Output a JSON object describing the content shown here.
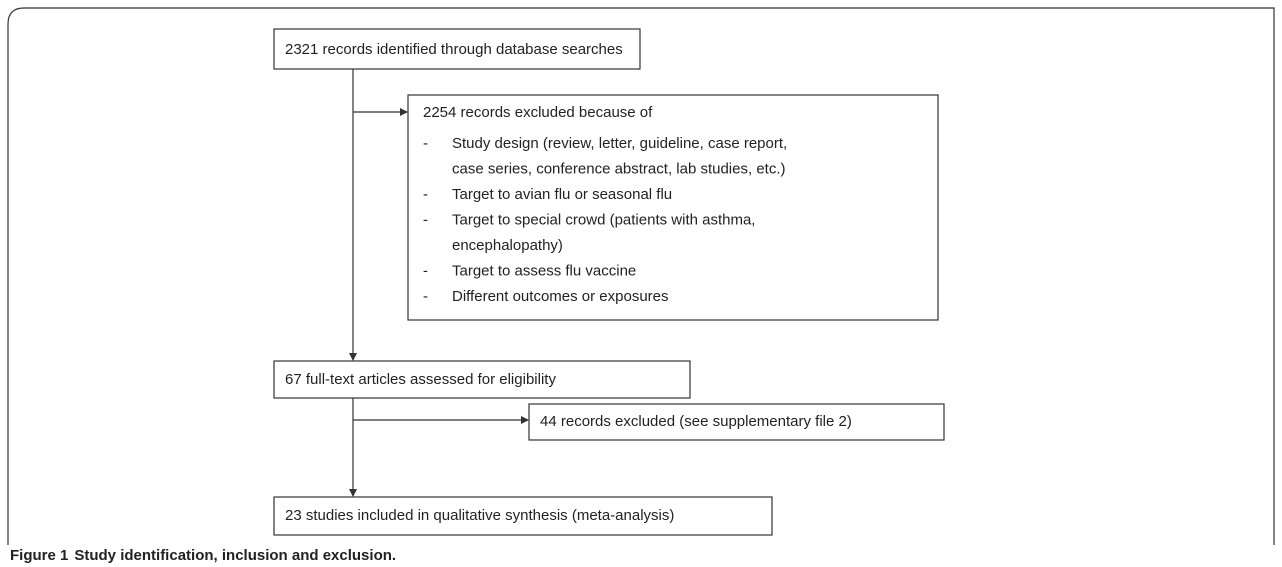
{
  "nodes": [
    {
      "text": "2321 records identified through database searches"
    },
    {
      "text": "67 full-text articles assessed for eligibility"
    },
    {
      "text": "23 studies included in qualitative synthesis (meta-analysis)"
    }
  ],
  "exclusions": [
    {
      "title": "2254 records excluded because of",
      "items": [
        [
          "Study design (review, letter, guideline, case report,",
          "case series, conference abstract, lab studies, etc.)"
        ],
        [
          "Target to avian flu or seasonal flu"
        ],
        [
          "Target to special crowd (patients with asthma,",
          "encephalopathy)"
        ],
        [
          "Target to assess flu vaccine"
        ],
        [
          "Different outcomes or exposures"
        ]
      ]
    },
    {
      "title": "44 records excluded (see supplementary file 2)"
    }
  ],
  "caption": {
    "label": "Figure 1",
    "text": "Study identification, inclusion and exclusion."
  }
}
